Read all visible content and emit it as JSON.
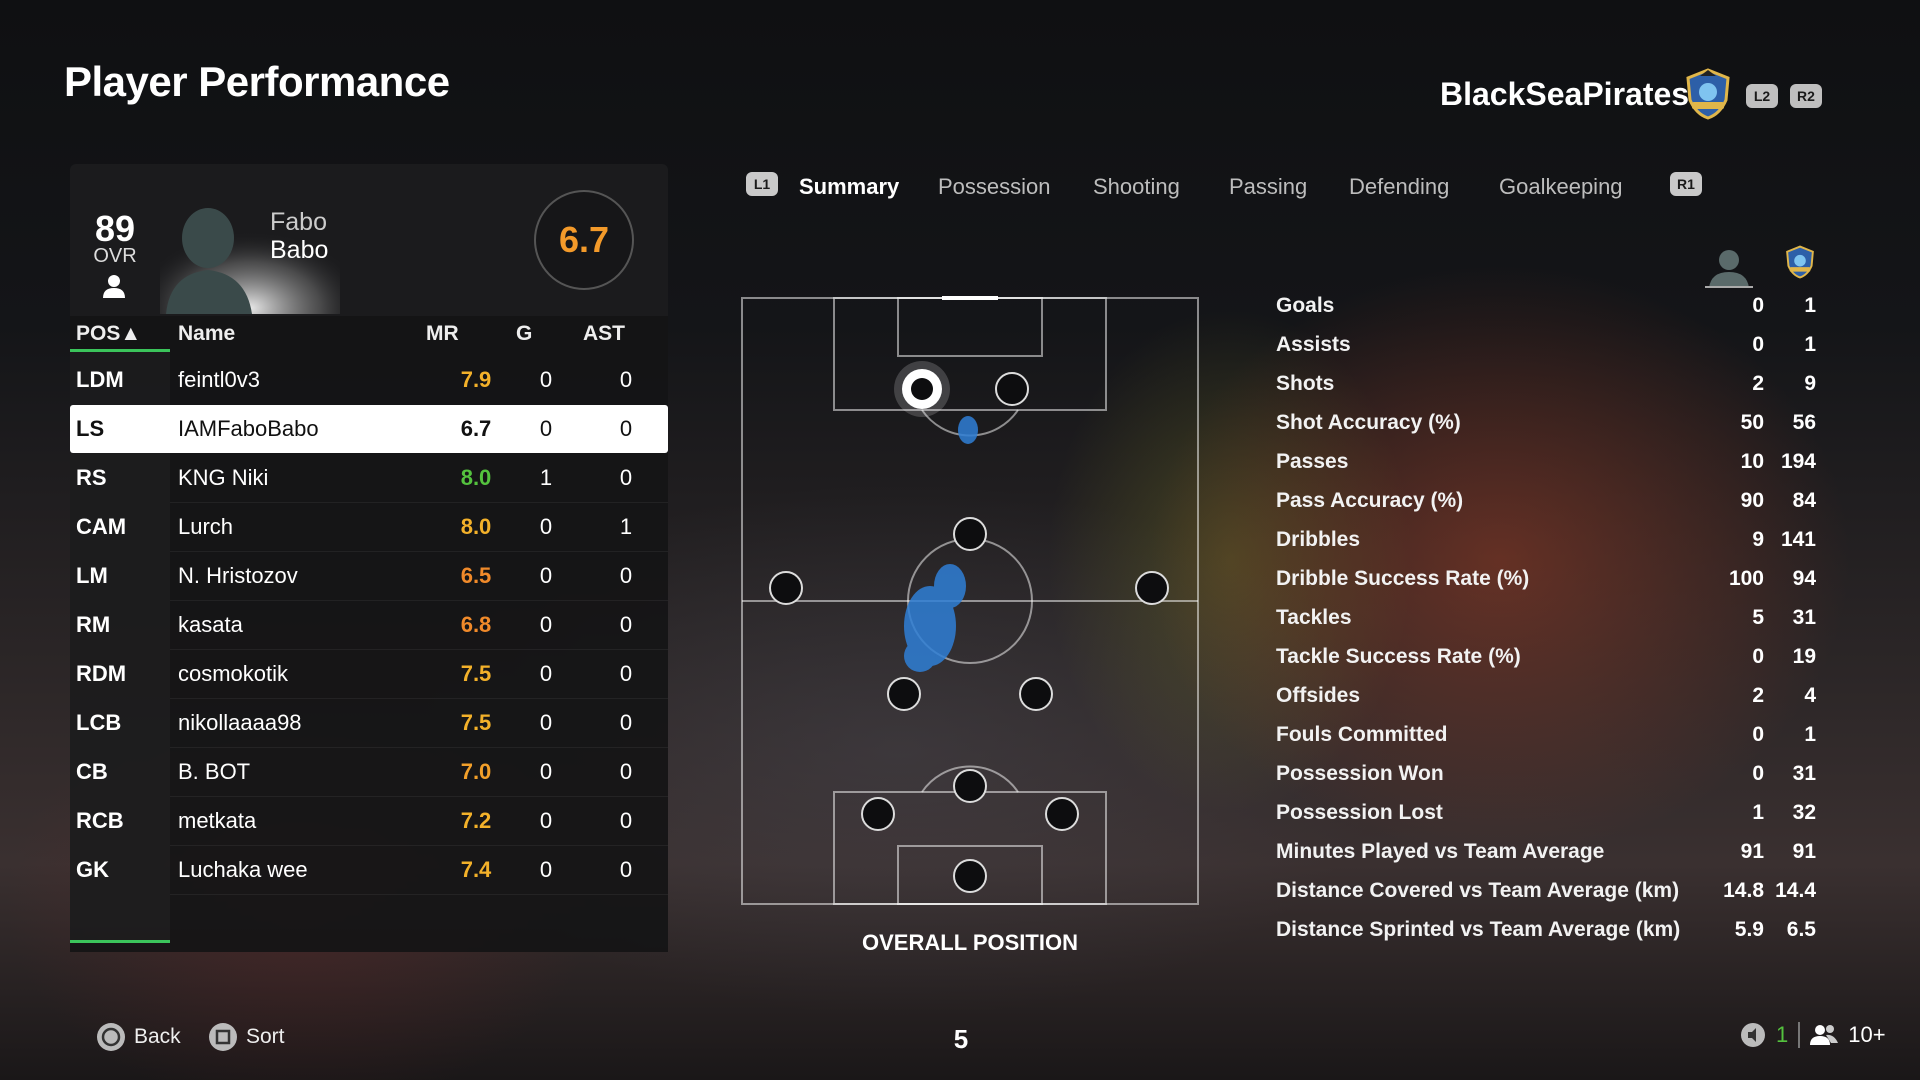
{
  "header": {
    "title": "Player Performance",
    "club_name": "BlackSeaPirates",
    "l2": "L2",
    "r2": "R2"
  },
  "player": {
    "ovr": "89",
    "ovr_label": "OVR",
    "first_name": "Fabo",
    "last_name": "Babo",
    "match_rating": "6.7"
  },
  "table": {
    "headers": {
      "pos": "POS▲",
      "name": "Name",
      "mr": "MR",
      "g": "G",
      "ast": "AST"
    },
    "rows": [
      {
        "pos": "LDM",
        "name": "feintl0v3",
        "mr": "7.9",
        "g": "0",
        "ast": "0",
        "mr_color": "#f3b12a"
      },
      {
        "pos": "LS",
        "name": "IAMFaboBabo",
        "mr": "6.7",
        "g": "0",
        "ast": "0",
        "mr_color": "#111111"
      },
      {
        "pos": "RS",
        "name": "KNG Niki",
        "mr": "8.0",
        "g": "1",
        "ast": "0",
        "mr_color": "#54c23e"
      },
      {
        "pos": "CAM",
        "name": "Lurch",
        "mr": "8.0",
        "g": "0",
        "ast": "1",
        "mr_color": "#f3b12a"
      },
      {
        "pos": "LM",
        "name": "N. Hristozov",
        "mr": "6.5",
        "g": "0",
        "ast": "0",
        "mr_color": "#f08a2a"
      },
      {
        "pos": "RM",
        "name": "kasata",
        "mr": "6.8",
        "g": "0",
        "ast": "0",
        "mr_color": "#f08a2a"
      },
      {
        "pos": "RDM",
        "name": "cosmokotik",
        "mr": "7.5",
        "g": "0",
        "ast": "0",
        "mr_color": "#f3b12a"
      },
      {
        "pos": "LCB",
        "name": "nikollaaaa98",
        "mr": "7.5",
        "g": "0",
        "ast": "0",
        "mr_color": "#f3b12a"
      },
      {
        "pos": "CB",
        "name": "B. BOT",
        "mr": "7.0",
        "g": "0",
        "ast": "0",
        "mr_color": "#f3a02a"
      },
      {
        "pos": "RCB",
        "name": "metkata",
        "mr": "7.2",
        "g": "0",
        "ast": "0",
        "mr_color": "#f3b12a"
      },
      {
        "pos": "GK",
        "name": "Luchaka wee",
        "mr": "7.4",
        "g": "0",
        "ast": "0",
        "mr_color": "#f3b12a"
      }
    ],
    "selected_index": 1
  },
  "tabs": {
    "l1": "L1",
    "r1": "R1",
    "items": [
      "Summary",
      "Possession",
      "Shooting",
      "Passing",
      "Defending",
      "Goalkeeping"
    ],
    "active": "Summary"
  },
  "pitch": {
    "label": "OVERALL POSITION"
  },
  "stats": [
    {
      "label": "Goals",
      "player": "0",
      "team": "1"
    },
    {
      "label": "Assists",
      "player": "0",
      "team": "1"
    },
    {
      "label": "Shots",
      "player": "2",
      "team": "9"
    },
    {
      "label": "Shot Accuracy (%)",
      "player": "50",
      "team": "56"
    },
    {
      "label": "Passes",
      "player": "10",
      "team": "194"
    },
    {
      "label": "Pass Accuracy (%)",
      "player": "90",
      "team": "84"
    },
    {
      "label": "Dribbles",
      "player": "9",
      "team": "141"
    },
    {
      "label": "Dribble Success Rate (%)",
      "player": "100",
      "team": "94"
    },
    {
      "label": "Tackles",
      "player": "5",
      "team": "31"
    },
    {
      "label": "Tackle Success Rate (%)",
      "player": "0",
      "team": "19"
    },
    {
      "label": "Offsides",
      "player": "2",
      "team": "4"
    },
    {
      "label": "Fouls Committed",
      "player": "0",
      "team": "1"
    },
    {
      "label": "Possession Won",
      "player": "0",
      "team": "31"
    },
    {
      "label": "Possession Lost",
      "player": "1",
      "team": "32"
    },
    {
      "label": "Minutes Played vs Team Average",
      "player": "91",
      "team": "91"
    },
    {
      "label": "Distance Covered vs Team Average (km)",
      "player": "14.8",
      "team": "14.4"
    },
    {
      "label": "Distance Sprinted vs Team Average (km)",
      "player": "5.9",
      "team": "6.5"
    }
  ],
  "footer": {
    "back_label": "Back",
    "sort_label": "Sort",
    "page": "5",
    "voice_count": "1",
    "players_count": "10+"
  },
  "colors": {
    "accent_green": "#3bc45b",
    "rating_orange": "#f39a2a",
    "heat_blue": "#2f7fd6"
  }
}
